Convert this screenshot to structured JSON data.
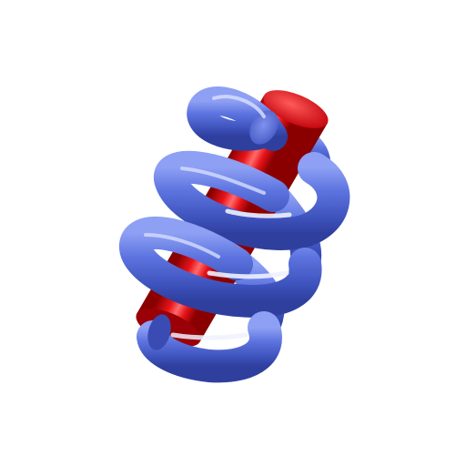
{
  "scene": {
    "background": "#ffffff",
    "rod": {
      "shape": "cylinder",
      "color": "#e8141a",
      "highlight": "#ff6b6b",
      "shadow": "#8a0000"
    },
    "coil": {
      "shape": "helix",
      "turns": 3,
      "color": "#5d74e0",
      "highlight": "#c9d3ff",
      "shadow": "#2f3f9e"
    }
  }
}
